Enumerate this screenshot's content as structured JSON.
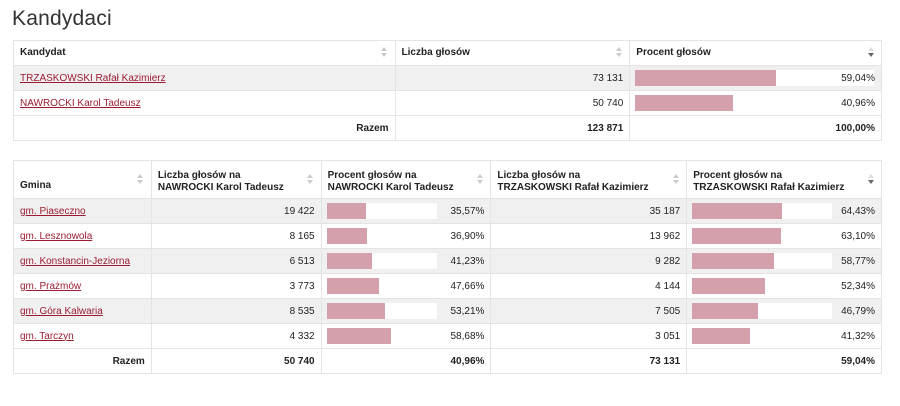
{
  "page_title": "Kandydaci",
  "colors": {
    "bar": "#d4a0ab",
    "link": "#9b1c31",
    "row_shade": "#f0f0f0"
  },
  "summary_table": {
    "headers": {
      "candidate": "Kandydat",
      "votes": "Liczba głosów",
      "percent": "Procent głosów"
    },
    "rows": [
      {
        "candidate": "TRZASKOWSKI Rafał Kazimierz",
        "votes": "73 131",
        "percent": "59,04%",
        "fraction": 0.5904
      },
      {
        "candidate": "NAWROCKI Karol Tadeusz",
        "votes": "50 740",
        "percent": "40,96%",
        "fraction": 0.4096
      }
    ],
    "total": {
      "label": "Razem",
      "votes": "123 871",
      "percent": "100,00%"
    }
  },
  "gmina_table": {
    "headers": {
      "gmina": "Gmina",
      "votes_nawrocki_1": "Liczba głosów na",
      "votes_nawrocki_2": "NAWROCKI Karol Tadeusz",
      "pct_nawrocki_1": "Procent głosów na",
      "pct_nawrocki_2": "NAWROCKI Karol Tadeusz",
      "votes_trzaskowski_1": "Liczba głosów na",
      "votes_trzaskowski_2": "TRZASKOWSKI Rafał Kazimierz",
      "pct_trzaskowski_1": "Procent głosów na",
      "pct_trzaskowski_2": "TRZASKOWSKI Rafał Kazimierz"
    },
    "rows": [
      {
        "gmina": "gm. Piaseczno",
        "n_votes": "19 422",
        "n_pct": "35,57%",
        "n_frac": 0.3557,
        "t_votes": "35 187",
        "t_pct": "64,43%",
        "t_frac": 0.6443
      },
      {
        "gmina": "gm. Lesznowola",
        "n_votes": "8 165",
        "n_pct": "36,90%",
        "n_frac": 0.369,
        "t_votes": "13 962",
        "t_pct": "63,10%",
        "t_frac": 0.631
      },
      {
        "gmina": "gm. Konstancin-Jeziorna",
        "n_votes": "6 513",
        "n_pct": "41,23%",
        "n_frac": 0.4123,
        "t_votes": "9 282",
        "t_pct": "58,77%",
        "t_frac": 0.5877
      },
      {
        "gmina": "gm. Prażmów",
        "n_votes": "3 773",
        "n_pct": "47,66%",
        "n_frac": 0.4766,
        "t_votes": "4 144",
        "t_pct": "52,34%",
        "t_frac": 0.5234
      },
      {
        "gmina": "gm. Góra Kalwaria",
        "n_votes": "8 535",
        "n_pct": "53,21%",
        "n_frac": 0.5321,
        "t_votes": "7 505",
        "t_pct": "46,79%",
        "t_frac": 0.4679
      },
      {
        "gmina": "gm. Tarczyn",
        "n_votes": "4 332",
        "n_pct": "58,68%",
        "n_frac": 0.5868,
        "t_votes": "3 051",
        "t_pct": "41,32%",
        "t_frac": 0.4132
      }
    ],
    "total": {
      "label": "Razem",
      "n_votes": "50 740",
      "n_pct": "40,96%",
      "t_votes": "73 131",
      "t_pct": "59,04%"
    }
  }
}
